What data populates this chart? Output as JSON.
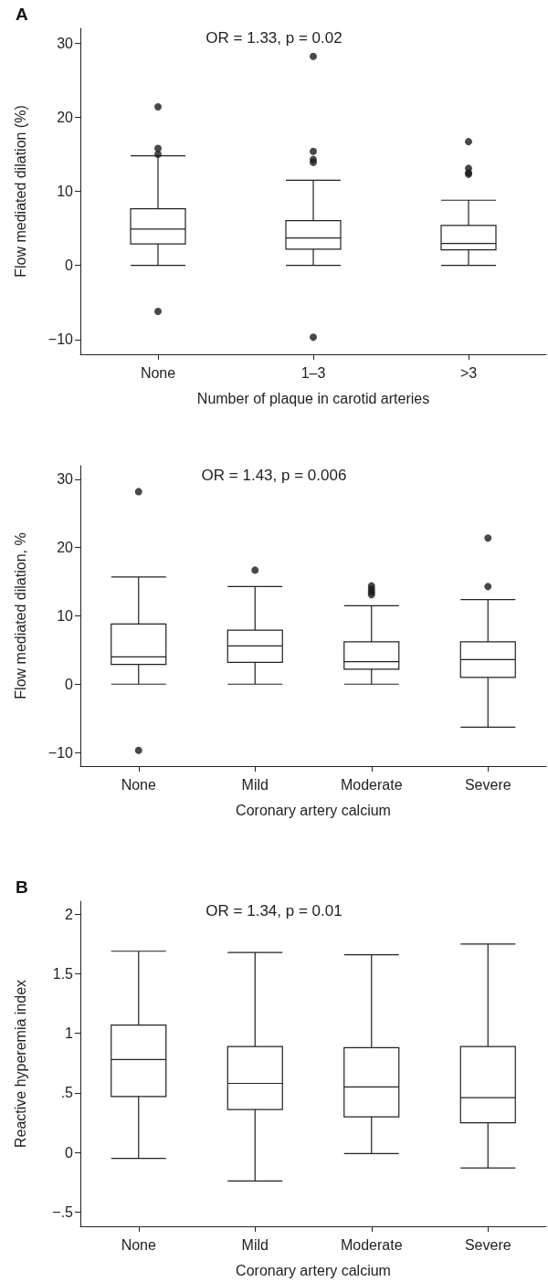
{
  "chart_data": [
    {
      "type": "box",
      "title": "A",
      "annotations": [
        "OR = 1.33, p = 0.02"
      ],
      "xlabel": "Number of plaque in carotid arteries",
      "ylabel": "Flow mediated dilation (%)",
      "categories": [
        "None",
        "1–3",
        ">3"
      ],
      "ylim": [
        -12,
        32
      ],
      "yticks": [
        {
          "value": -10,
          "label": "−10"
        },
        0,
        10,
        20,
        30
      ],
      "boxes": [
        {
          "low": 0,
          "q1": 2.9,
          "median": 4.9,
          "q3": 7.65,
          "high": 14.8,
          "outliers": [
            21.4,
            15.8,
            15.0,
            -6.2
          ]
        },
        {
          "low": 0,
          "q1": 2.2,
          "median": 3.7,
          "q3": 6.05,
          "high": 11.5,
          "outliers": [
            28.2,
            15.4,
            14.3,
            13.9,
            -9.7
          ]
        },
        {
          "low": 0,
          "q1": 2.1,
          "median": 2.96,
          "q3": 5.4,
          "high": 8.8,
          "outliers": [
            16.7,
            13.1,
            12.5,
            12.3
          ]
        }
      ]
    },
    {
      "type": "box",
      "annotations": [
        "OR = 1.43, p = 0.006"
      ],
      "xlabel": "Coronary artery calcium",
      "ylabel": "Flow mediated dilation, %",
      "categories": [
        "None",
        "Mild",
        "Moderate",
        "Severe"
      ],
      "ylim": [
        -12,
        32
      ],
      "yticks": [
        {
          "value": -10,
          "label": "−10"
        },
        0,
        10,
        20,
        30
      ],
      "boxes": [
        {
          "low": 0,
          "q1": 2.9,
          "median": 4.0,
          "q3": 8.8,
          "high": 15.7,
          "outliers": [
            28.2,
            -9.7
          ]
        },
        {
          "low": 0,
          "q1": 3.2,
          "median": 5.6,
          "q3": 7.9,
          "high": 14.3,
          "outliers": [
            16.7
          ]
        },
        {
          "low": 0,
          "q1": 2.2,
          "median": 3.3,
          "q3": 6.2,
          "high": 11.5,
          "outliers": [
            14.4,
            13.9,
            13.5,
            13.1
          ]
        },
        {
          "low": -6.3,
          "q1": 1.0,
          "median": 3.6,
          "q3": 6.2,
          "high": 12.4,
          "outliers": [
            21.4,
            14.3
          ]
        }
      ]
    },
    {
      "type": "box",
      "title": "B",
      "annotations": [
        "OR = 1.34, p = 0.01"
      ],
      "xlabel": "Coronary artery calcium",
      "ylabel": "Reactive hyperemia index",
      "categories": [
        "None",
        "Mild",
        "Moderate",
        "Severe"
      ],
      "ylim": [
        -0.62,
        2.11
      ],
      "yticks": [
        {
          "value": -0.5,
          "label": "−.5"
        },
        0,
        {
          "value": 0.5,
          "label": ".5"
        },
        1,
        1.5,
        2
      ],
      "boxes": [
        {
          "low": -0.05,
          "q1": 0.47,
          "median": 0.78,
          "q3": 1.07,
          "high": 1.69
        },
        {
          "low": -0.24,
          "q1": 0.36,
          "median": 0.58,
          "q3": 0.89,
          "high": 1.68
        },
        {
          "low": -0.01,
          "q1": 0.3,
          "median": 0.55,
          "q3": 0.88,
          "high": 1.66
        },
        {
          "low": -0.13,
          "q1": 0.25,
          "median": 0.46,
          "q3": 0.89,
          "high": 1.75
        }
      ]
    }
  ]
}
